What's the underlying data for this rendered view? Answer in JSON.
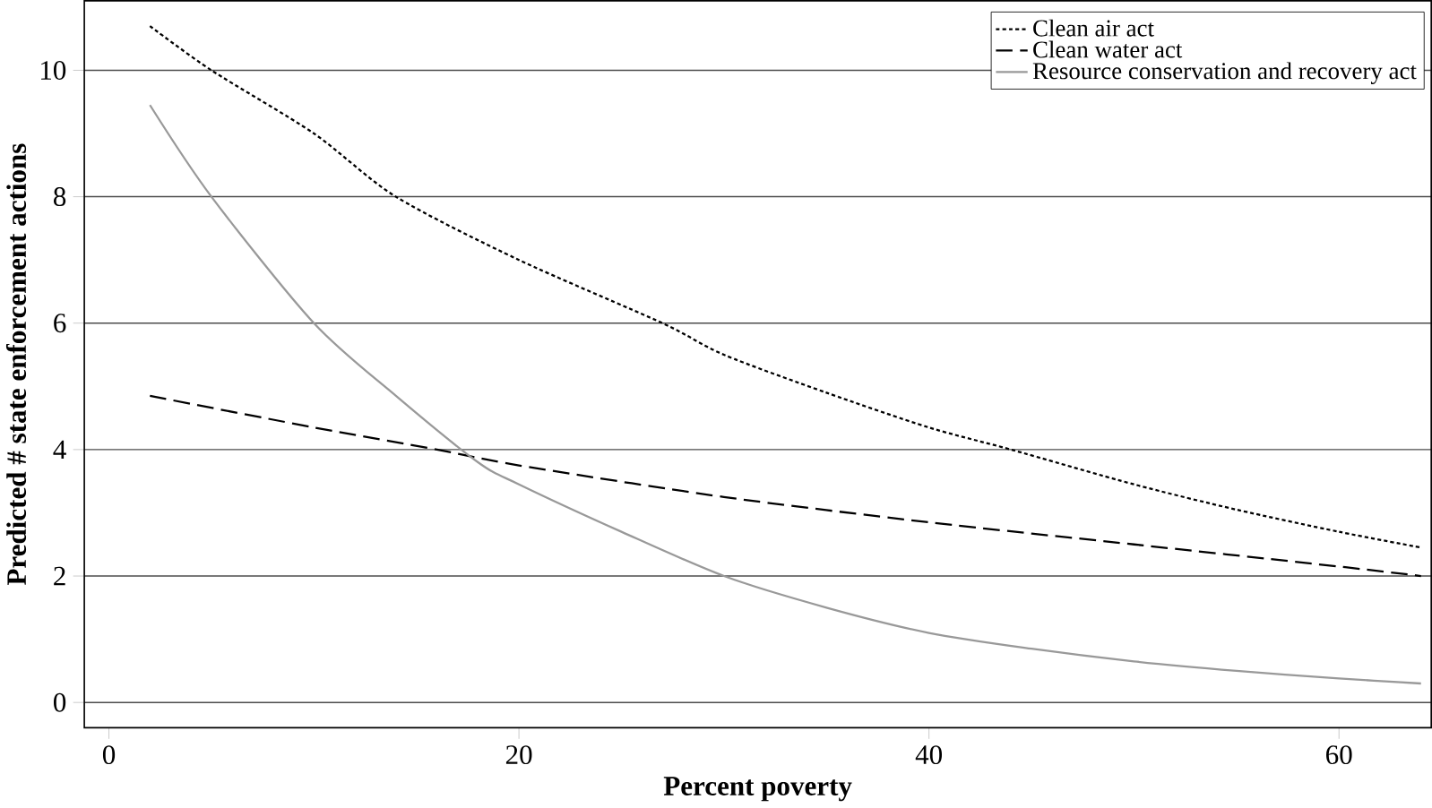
{
  "chart_data": {
    "type": "line",
    "xlabel": "Percent poverty",
    "ylabel": "Predicted # state enforcement actions",
    "xlim": [
      -1.2,
      64.5
    ],
    "ylim": [
      -0.4,
      11.1
    ],
    "xticks": [
      0,
      20,
      40,
      60
    ],
    "yticks": [
      0,
      2,
      4,
      6,
      8,
      10
    ],
    "grid": "y",
    "legend": "top right",
    "marker": "none",
    "series": [
      {
        "name": "Clean air act",
        "color": "#000000",
        "line_style": "dotted",
        "x": [
          2,
          5,
          10,
          14,
          20,
          27,
          30,
          35,
          40,
          44,
          50,
          55,
          60,
          64
        ],
        "values": [
          10.7,
          10.0,
          9.0,
          8.0,
          7.0,
          6.0,
          5.5,
          4.9,
          4.35,
          4.0,
          3.45,
          3.05,
          2.7,
          2.45
        ]
      },
      {
        "name": "Clean water act",
        "color": "#000000",
        "line_style": "dashed",
        "x": [
          2,
          10,
          16,
          20,
          30,
          40,
          50,
          60,
          64
        ],
        "values": [
          4.85,
          4.35,
          4.0,
          3.75,
          3.25,
          2.85,
          2.5,
          2.15,
          2.0
        ]
      },
      {
        "name": "Resource conservation and recovery act",
        "color": "#999999",
        "line_style": "solid",
        "x": [
          2,
          5,
          10,
          14,
          18,
          20,
          25,
          30,
          35,
          40,
          45,
          50,
          55,
          60,
          64
        ],
        "values": [
          9.45,
          8.0,
          6.0,
          4.85,
          3.8,
          3.45,
          2.7,
          2.0,
          1.5,
          1.1,
          0.85,
          0.65,
          0.5,
          0.38,
          0.3
        ]
      }
    ]
  }
}
